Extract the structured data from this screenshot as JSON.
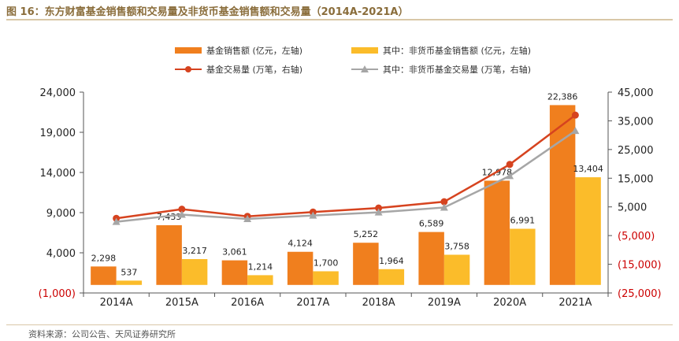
{
  "title": "图 16：东方财富基金销售额和交易量及非货币基金销售额和交易量（2014A-2021A）",
  "source": "资料来源：公司公告、天风证券研究所",
  "colors": {
    "fund_sales": "#f07f1e",
    "nonmoney_sales": "#fbbc2a",
    "fund_trades": "#d6431f",
    "nonmoney_trades": "#a6a6a6",
    "negative_tick": "#cc0000",
    "title": "#8a6d3b"
  },
  "legend": [
    {
      "label": "基金销售额 (亿元，左轴)",
      "kind": "bar",
      "color_key": "fund_sales"
    },
    {
      "label": "其中：非货币基金销售额 (亿元，左轴)",
      "kind": "bar",
      "color_key": "nonmoney_sales"
    },
    {
      "label": "基金交易量 (万笔，右轴)",
      "kind": "line-circle",
      "color_key": "fund_trades"
    },
    {
      "label": "其中：非货币基金交易量 (万笔，右轴)",
      "kind": "line-triangle",
      "color_key": "nonmoney_trades"
    }
  ],
  "chart_data": {
    "type": "bar",
    "categories": [
      "2014A",
      "2015A",
      "2016A",
      "2017A",
      "2018A",
      "2019A",
      "2020A",
      "2021A"
    ],
    "left_axis": {
      "ylim": [
        -1000,
        24000
      ],
      "ticks": [
        -1000,
        4000,
        9000,
        14000,
        19000,
        24000
      ],
      "tick_labels": [
        "(1,000)",
        "4,000",
        "9,000",
        "14,000",
        "19,000",
        "24,000"
      ]
    },
    "right_axis": {
      "ylim": [
        -25000,
        45000
      ],
      "ticks": [
        -25000,
        -15000,
        -5000,
        5000,
        15000,
        25000,
        35000,
        45000
      ],
      "tick_labels": [
        "(25,000)",
        "(15,000)",
        "(5,000)",
        "5,000",
        "15,000",
        "25,000",
        "35,000",
        "45,000"
      ]
    },
    "series": [
      {
        "name": "基金销售额 (亿元，左轴)",
        "type": "bar",
        "axis": "left",
        "color_key": "fund_sales",
        "values": [
          2298,
          7433,
          3061,
          4124,
          5252,
          6589,
          12978,
          22386
        ],
        "labels": [
          "2,298",
          "7,433",
          "3,061",
          "4,124",
          "5,252",
          "6,589",
          "12,978",
          "22,386"
        ]
      },
      {
        "name": "其中：非货币基金销售额 (亿元，左轴)",
        "type": "bar",
        "axis": "left",
        "color_key": "nonmoney_sales",
        "values": [
          537,
          3217,
          1214,
          1700,
          1964,
          3758,
          6991,
          13404
        ],
        "labels": [
          "537",
          "3,217",
          "1,214",
          "1,700",
          "1,964",
          "3,758",
          "6,991",
          "13,404"
        ]
      },
      {
        "name": "基金交易量 (万笔，右轴)",
        "type": "line",
        "marker": "circle",
        "axis": "right",
        "color_key": "fund_trades",
        "values": [
          1000,
          4200,
          1700,
          3200,
          4600,
          6800,
          19800,
          37000
        ]
      },
      {
        "name": "其中：非货币基金交易量 (万笔，右轴)",
        "type": "line",
        "marker": "triangle",
        "axis": "right",
        "color_key": "nonmoney_trades",
        "values": [
          -200,
          2300,
          800,
          2000,
          3100,
          4800,
          15800,
          31500
        ]
      }
    ]
  }
}
